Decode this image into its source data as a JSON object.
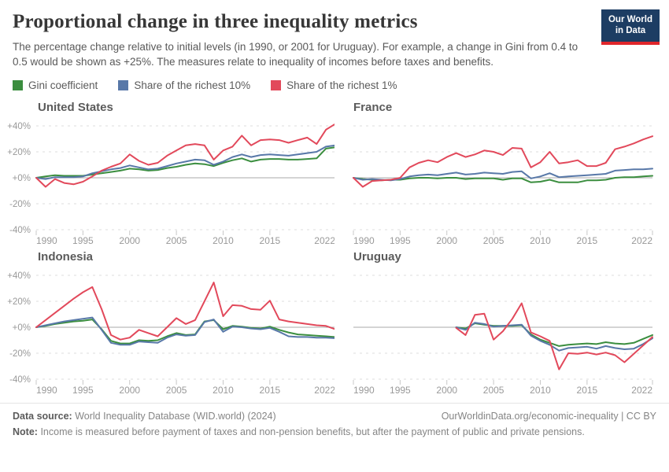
{
  "header": {
    "title": "Proportional change in three inequality metrics",
    "subtitle": "The percentage change relative to initial levels (in 1990, or 2001 for Uruguay). For example, a change in Gini from 0.4 to 0.5 would be shown as +25%. The measures relate to inequality of incomes before taxes and benefits.",
    "logo": {
      "line1": "Our World",
      "line2": "in Data"
    }
  },
  "legend": [
    {
      "label": "Gini coefficient",
      "color": "#3b8e3f"
    },
    {
      "label": "Share of the richest 10%",
      "color": "#5878a8"
    },
    {
      "label": "Share of the richest 1%",
      "color": "#e2495b"
    }
  ],
  "colors": {
    "gridline": "#dedede",
    "zero_line": "#a8a8a8",
    "tick_mark": "#c8c8c8",
    "axis_text": "#999999"
  },
  "axis": {
    "y_range": [
      -40,
      45
    ],
    "y_ticks": [
      {
        "value": 40,
        "label": "+40%"
      },
      {
        "value": 20,
        "label": "+20%"
      },
      {
        "value": 0,
        "label": "+0%"
      },
      {
        "value": -20,
        "label": "-20%"
      },
      {
        "value": -40,
        "label": "-40%"
      }
    ],
    "x_range": [
      1990,
      2022
    ],
    "x_ticks": [
      {
        "year": 1990,
        "label": "1990"
      },
      {
        "year": 1995,
        "label": "1995"
      },
      {
        "year": 2000,
        "label": "2000"
      },
      {
        "year": 2005,
        "label": "2005"
      },
      {
        "year": 2010,
        "label": "2010"
      },
      {
        "year": 2015,
        "label": "2015"
      },
      {
        "year": 2022,
        "label": "2022"
      }
    ]
  },
  "chart_data": [
    {
      "type": "line",
      "title": "United States",
      "show_y_axis_labels": true,
      "series": [
        {
          "name": "Gini coefficient",
          "color": "#3b8e3f",
          "start_year": 1990,
          "values": [
            0,
            1,
            2,
            1.5,
            1.5,
            1.5,
            2.5,
            3.5,
            4.5,
            5.5,
            7,
            6.5,
            5.5,
            6,
            7.5,
            8.5,
            10,
            11,
            10.5,
            9,
            11.5,
            13.5,
            15,
            12.5,
            14,
            14.5,
            14.5,
            14,
            14,
            14.5,
            15,
            22.5,
            23.5
          ]
        },
        {
          "name": "Share of the richest 10%",
          "color": "#5878a8",
          "start_year": 1990,
          "values": [
            0,
            -1,
            0.5,
            0.5,
            0.5,
            1,
            3.5,
            5,
            6.5,
            7.5,
            9.5,
            8,
            6.5,
            7,
            9,
            11,
            12.5,
            14,
            13.5,
            10,
            12.5,
            16,
            18,
            16,
            17.5,
            18,
            17.5,
            17,
            18,
            19,
            20,
            24,
            25
          ]
        },
        {
          "name": "Share of the richest 1%",
          "color": "#e2495b",
          "start_year": 1990,
          "values": [
            0,
            -7,
            -1,
            -4,
            -5,
            -3,
            1,
            5.5,
            8.5,
            11,
            18,
            13,
            10,
            11.5,
            17,
            21,
            25,
            26,
            25,
            14,
            21,
            24,
            32.5,
            25,
            29,
            29.5,
            29,
            27,
            29,
            31,
            26,
            37,
            41.5
          ]
        }
      ]
    },
    {
      "type": "line",
      "title": "France",
      "show_y_axis_labels": false,
      "series": [
        {
          "name": "Gini coefficient",
          "color": "#3b8e3f",
          "start_year": 1990,
          "values": [
            0,
            -1,
            -1.5,
            -2,
            -1.5,
            -1.5,
            -0.5,
            0,
            0,
            -0.5,
            0,
            0,
            -1,
            -0.5,
            -0.5,
            -0.5,
            -1.5,
            -0.5,
            -0.5,
            -3.5,
            -3,
            -1.5,
            -3.5,
            -3.5,
            -3.5,
            -2,
            -2,
            -1.5,
            0,
            0.5,
            0.5,
            1,
            1.5
          ]
        },
        {
          "name": "Share of the richest 10%",
          "color": "#5878a8",
          "start_year": 1990,
          "values": [
            0,
            -1.5,
            -1,
            -1.5,
            -2,
            -1,
            1,
            2,
            2.5,
            2,
            3,
            4,
            2.5,
            3,
            4,
            3.5,
            3,
            4.5,
            5,
            -0.5,
            1,
            3.5,
            0.5,
            1,
            1.5,
            2,
            2.5,
            3,
            5.5,
            6,
            6.5,
            6.5,
            7
          ]
        },
        {
          "name": "Share of the richest 1%",
          "color": "#e2495b",
          "start_year": 1990,
          "values": [
            0,
            -7,
            -2.5,
            -2,
            -1.5,
            0,
            8,
            11.5,
            13.5,
            12,
            16,
            19,
            16,
            18,
            21,
            20,
            17.5,
            23,
            22.5,
            8,
            12,
            20,
            11,
            12,
            13.5,
            9,
            9,
            11.5,
            22,
            24,
            26.5,
            29.5,
            32
          ]
        }
      ]
    },
    {
      "type": "line",
      "title": "Indonesia",
      "show_y_axis_labels": true,
      "series": [
        {
          "name": "Gini coefficient",
          "color": "#3b8e3f",
          "start_year": 1990,
          "values": [
            0,
            1,
            2.5,
            3.5,
            4.5,
            5,
            6,
            -1.5,
            -10.5,
            -12.5,
            -12.5,
            -10,
            -10.5,
            -10,
            -7,
            -4.5,
            -6,
            -5.5,
            4.5,
            5.5,
            -1.5,
            1,
            0.5,
            -0.5,
            -1,
            0.5,
            -2,
            -4,
            -5.5,
            -6,
            -6.5,
            -7,
            -7.5
          ]
        },
        {
          "name": "Share of the richest 10%",
          "color": "#5878a8",
          "start_year": 1990,
          "values": [
            0,
            1.5,
            3,
            4.5,
            5.5,
            6.5,
            7.5,
            -2,
            -12,
            -13.5,
            -13.5,
            -11,
            -11.5,
            -12,
            -8,
            -5.5,
            -6.5,
            -6,
            4,
            6,
            -3.5,
            0.5,
            0,
            -1,
            -1.5,
            -0.5,
            -3.5,
            -7,
            -7.5,
            -7.5,
            -8,
            -8,
            -8.5
          ]
        },
        {
          "name": "Share of the richest 1%",
          "color": "#e2495b",
          "start_year": 1990,
          "values": [
            0,
            5.5,
            11,
            16.5,
            22,
            27,
            31,
            14,
            -6,
            -9.5,
            -8,
            -2,
            -4.5,
            -7,
            0,
            7,
            2.5,
            5.5,
            20,
            34.5,
            8.5,
            17,
            16.5,
            14,
            13.5,
            20.5,
            6,
            4.5,
            3.5,
            2.5,
            1.5,
            1,
            -1.5
          ]
        }
      ]
    },
    {
      "type": "line",
      "title": "Uruguay",
      "show_y_axis_labels": false,
      "series": [
        {
          "name": "Gini coefficient",
          "color": "#3b8e3f",
          "start_year": 2001,
          "values": [
            0,
            -1,
            3,
            2,
            1,
            1,
            1,
            1.5,
            -5.5,
            -9.5,
            -12,
            -14.5,
            -13.5,
            -13,
            -12.5,
            -13,
            -11.5,
            -12.5,
            -13,
            -12,
            -9,
            -6
          ]
        },
        {
          "name": "Share of the richest 10%",
          "color": "#5878a8",
          "start_year": 2001,
          "values": [
            0,
            -2,
            3.5,
            2.5,
            0.5,
            1,
            1.5,
            2,
            -6.5,
            -10.5,
            -13.5,
            -18,
            -16,
            -15.5,
            -15,
            -16.5,
            -14.5,
            -16,
            -17,
            -16.5,
            -13,
            -8.5
          ]
        },
        {
          "name": "Share of the richest 1%",
          "color": "#e2495b",
          "start_year": 2001,
          "values": [
            -0.5,
            -6,
            9.5,
            10.5,
            -9.5,
            -3,
            6.5,
            18.5,
            -4,
            -7,
            -10.5,
            -32.5,
            -20,
            -20.5,
            -19.5,
            -21,
            -19.5,
            -21.5,
            -27,
            -20.5,
            -14,
            -7.5
          ]
        }
      ]
    }
  ],
  "footer": {
    "data_source_label": "Data source:",
    "data_source": "World Inequality Database (WID.world) (2024)",
    "link": "OurWorldinData.org/economic-inequality",
    "separator": "|",
    "license": "CC BY",
    "note_label": "Note:",
    "note": "Income is measured before payment of taxes and non-pension benefits, but after the payment of public and private pensions."
  }
}
